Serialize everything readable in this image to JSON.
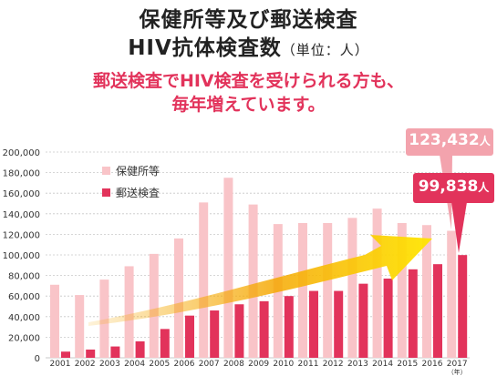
{
  "header": {
    "title_line1": "保健所等及び郵送検査",
    "title_line2": "HIV抗体検査数",
    "title_unit": "（単位：人）",
    "subtitle_line1": "郵送検査でHIV検査を受けられる方も、",
    "subtitle_line2": "毎年増えています。"
  },
  "callouts": {
    "health_center": {
      "value": "123,432",
      "unit": "人"
    },
    "mail": {
      "value": "99,838",
      "unit": "人"
    }
  },
  "colors": {
    "health_center": "#f9c4c8",
    "mail": "#e2335b",
    "callout_pink": "#f3a3ad",
    "callout_red": "#e2335b",
    "arrow_start": "#f5a800",
    "arrow_end": "#ffe600",
    "grid": "#c8c8c8"
  },
  "chart_data": {
    "type": "bar",
    "categories": [
      "2001",
      "2002",
      "2003",
      "2004",
      "2005",
      "2006",
      "2007",
      "2008",
      "2009",
      "2010",
      "2011",
      "2012",
      "2013",
      "2014",
      "2015",
      "2016",
      "2017"
    ],
    "x_unit_label": "（年）",
    "series": [
      {
        "name": "保健所等",
        "values": [
          71000,
          61000,
          76000,
          89000,
          101000,
          116000,
          151000,
          175000,
          149000,
          130000,
          131000,
          131000,
          136000,
          145000,
          131000,
          129000,
          123432
        ]
      },
      {
        "name": "郵送検査",
        "values": [
          6000,
          8000,
          11000,
          16000,
          28000,
          41000,
          46000,
          52000,
          55000,
          60000,
          65000,
          65000,
          72000,
          77000,
          86000,
          91000,
          99838
        ]
      }
    ],
    "yticks": [
      "0",
      "20,000",
      "40,000",
      "60,000",
      "80,000",
      "100,000",
      "120,000",
      "140,000",
      "160,000",
      "180,000",
      "200,000"
    ],
    "ylim": [
      0,
      200000
    ],
    "grid": true,
    "legend_position": "top-left"
  }
}
